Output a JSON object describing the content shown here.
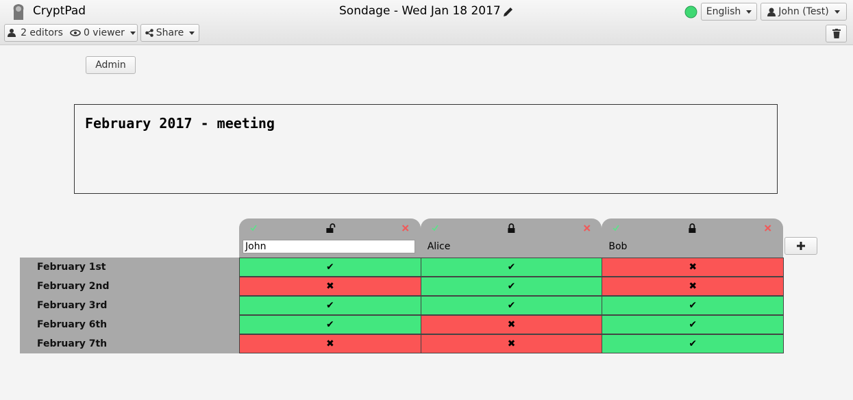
{
  "toolbar": {
    "app_name": "CryptPad",
    "title": "Sondage - Wed Jan 18 2017",
    "editors": "2 editors",
    "viewers": "0 viewer",
    "share": "Share",
    "language": "English",
    "user": "John (Test)"
  },
  "admin_button": "Admin",
  "description": "February 2017 - meeting",
  "poll": {
    "columns": [
      {
        "name": "John",
        "locked": false
      },
      {
        "name": "Alice",
        "locked": true
      },
      {
        "name": "Bob",
        "locked": true
      }
    ],
    "rows": [
      {
        "label": "February 1st",
        "cells": [
          "✔",
          "✔",
          "✖"
        ]
      },
      {
        "label": "February 2nd",
        "cells": [
          "✖",
          "✔",
          "✖"
        ]
      },
      {
        "label": "February 3rd",
        "cells": [
          "✔",
          "✔",
          "✔"
        ]
      },
      {
        "label": "February 6th",
        "cells": [
          "✔",
          "✖",
          "✔"
        ]
      },
      {
        "label": "February 7th",
        "cells": [
          "✖",
          "✖",
          "✔"
        ]
      }
    ],
    "cell_colors": {
      "✔": "#43e77f",
      "✖": "#fb5555"
    }
  }
}
